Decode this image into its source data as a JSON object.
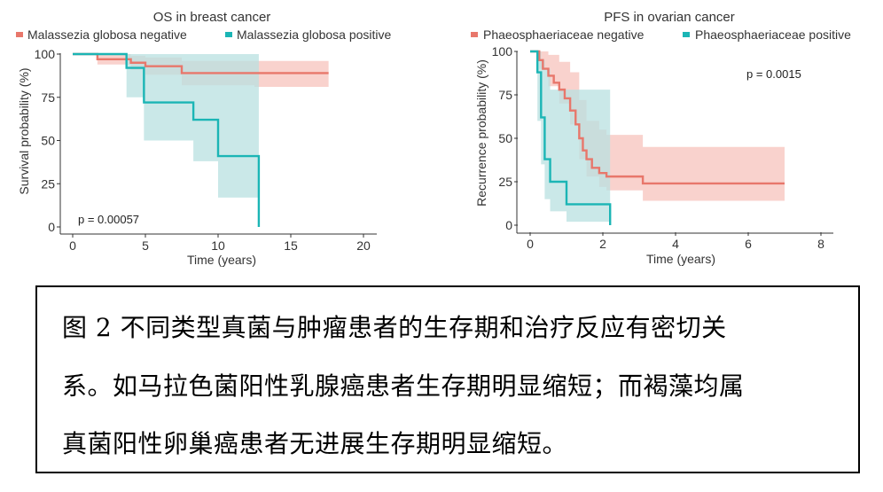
{
  "chart_data": [
    {
      "type": "line",
      "title": "OS in breast cancer",
      "xlabel": "Time (years)",
      "ylabel": "Survival probability (%)",
      "xlim": [
        0,
        20
      ],
      "ylim": [
        0,
        100
      ],
      "xticks": [
        "0",
        "5",
        "10",
        "15",
        "20"
      ],
      "yticks": [
        "0",
        "25",
        "50",
        "75",
        "100"
      ],
      "legend_position": "top",
      "annotation": "p = 0.00057",
      "series": [
        {
          "name": "Malassezia globosa negative",
          "color": "#e8776b",
          "band_color": "#f7c3bc",
          "steps": [
            [
              0,
              100
            ],
            [
              1.7,
              100
            ],
            [
              1.7,
              97
            ],
            [
              4,
              97
            ],
            [
              4,
              95
            ],
            [
              5,
              95
            ],
            [
              5,
              93
            ],
            [
              7.5,
              93
            ],
            [
              7.5,
              89
            ],
            [
              17.6,
              89
            ]
          ],
          "band": [
            [
              0,
              100,
              100
            ],
            [
              1.7,
              100,
              94
            ],
            [
              4,
              99,
              91
            ],
            [
              5,
              98,
              88
            ],
            [
              7.5,
              96,
              82
            ],
            [
              12.5,
              96,
              81
            ],
            [
              17.6,
              96,
              81
            ]
          ]
        },
        {
          "name": "Malassezia globosa positive",
          "color": "#1bb5b5",
          "band_color": "#b8e0e0",
          "steps": [
            [
              0,
              100
            ],
            [
              3.7,
              100
            ],
            [
              3.7,
              92
            ],
            [
              4.9,
              92
            ],
            [
              4.9,
              72
            ],
            [
              8.3,
              72
            ],
            [
              8.3,
              62
            ],
            [
              10,
              62
            ],
            [
              10,
              41
            ],
            [
              12.8,
              41
            ],
            [
              12.8,
              0
            ]
          ],
          "band": [
            [
              0,
              100,
              100
            ],
            [
              3.7,
              100,
              75
            ],
            [
              4.9,
              100,
              50
            ],
            [
              8.3,
              100,
              38
            ],
            [
              10,
              100,
              17
            ],
            [
              12.8,
              100,
              0
            ]
          ]
        }
      ]
    },
    {
      "type": "line",
      "title": "PFS in ovarian cancer",
      "xlabel": "Time (years)",
      "ylabel": "Recurrence probability (%)",
      "xlim": [
        0,
        8
      ],
      "ylim": [
        0,
        100
      ],
      "xticks": [
        "0",
        "2",
        "4",
        "6",
        "8"
      ],
      "yticks": [
        "0",
        "25",
        "50",
        "75",
        "100"
      ],
      "legend_position": "top",
      "annotation": "p = 0.0015",
      "series": [
        {
          "name": "Phaeosphaeriaceae negative",
          "color": "#e8776b",
          "band_color": "#f7c3bc",
          "steps": [
            [
              0,
              100
            ],
            [
              0.25,
              100
            ],
            [
              0.25,
              95
            ],
            [
              0.35,
              95
            ],
            [
              0.35,
              90
            ],
            [
              0.5,
              90
            ],
            [
              0.5,
              86
            ],
            [
              0.65,
              86
            ],
            [
              0.65,
              82
            ],
            [
              0.8,
              82
            ],
            [
              0.8,
              78
            ],
            [
              0.95,
              78
            ],
            [
              0.95,
              73
            ],
            [
              1.1,
              73
            ],
            [
              1.1,
              66
            ],
            [
              1.25,
              66
            ],
            [
              1.25,
              58
            ],
            [
              1.35,
              58
            ],
            [
              1.35,
              50
            ],
            [
              1.45,
              50
            ],
            [
              1.45,
              43
            ],
            [
              1.55,
              43
            ],
            [
              1.55,
              38
            ],
            [
              1.7,
              38
            ],
            [
              1.7,
              33
            ],
            [
              1.9,
              33
            ],
            [
              1.9,
              30
            ],
            [
              2.1,
              30
            ],
            [
              2.1,
              28
            ],
            [
              3.1,
              28
            ],
            [
              3.1,
              24
            ],
            [
              7,
              24
            ]
          ],
          "band": [
            [
              0,
              100,
              100
            ],
            [
              0.25,
              100,
              90
            ],
            [
              0.5,
              98,
              80
            ],
            [
              0.8,
              94,
              70
            ],
            [
              1.1,
              88,
              58
            ],
            [
              1.35,
              72,
              38
            ],
            [
              1.55,
              60,
              28
            ],
            [
              1.9,
              55,
              22
            ],
            [
              2.1,
              52,
              20
            ],
            [
              3.1,
              45,
              14
            ],
            [
              7,
              43,
              13
            ]
          ]
        },
        {
          "name": "Phaeosphaeriaceae positive",
          "color": "#1bb5b5",
          "band_color": "#b8e0e0",
          "steps": [
            [
              0,
              100
            ],
            [
              0.2,
              100
            ],
            [
              0.2,
              88
            ],
            [
              0.3,
              88
            ],
            [
              0.3,
              62
            ],
            [
              0.4,
              62
            ],
            [
              0.4,
              38
            ],
            [
              0.55,
              38
            ],
            [
              0.55,
              25
            ],
            [
              1,
              25
            ],
            [
              1,
              12
            ],
            [
              2.2,
              12
            ],
            [
              2.2,
              0
            ]
          ],
          "band": [
            [
              0,
              100,
              100
            ],
            [
              0.2,
              100,
              60
            ],
            [
              0.3,
              95,
              35
            ],
            [
              0.4,
              90,
              15
            ],
            [
              0.55,
              78,
              8
            ],
            [
              1,
              78,
              2
            ],
            [
              2.2,
              78,
              0
            ]
          ]
        }
      ]
    }
  ],
  "caption": {
    "line1": "图 2 不同类型真菌与肿瘤患者的生存期和治疗反应有密切关",
    "line2": "系。如马拉色菌阳性乳腺癌患者生存期明显缩短；而褐藻均属",
    "line3": "真菌阳性卵巢癌患者无进展生存期明显缩短。"
  }
}
